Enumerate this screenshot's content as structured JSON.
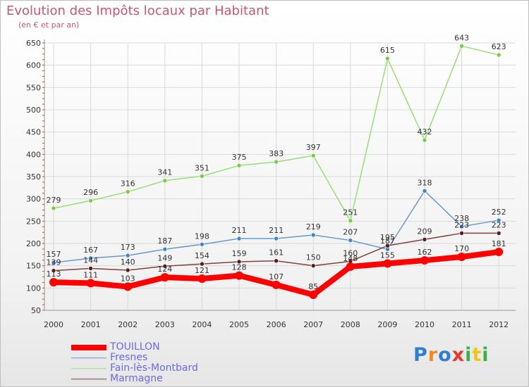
{
  "header": {
    "title": "Evolution des Impôts locaux par Habitant",
    "subtitle": "(en € et par an)"
  },
  "logo_text": "Proxiti",
  "chart_data": {
    "type": "line",
    "title": "Evolution des Impôts locaux par Habitant",
    "subtitle": "(en € et par an)",
    "xlabel": "",
    "ylabel": "",
    "x": [
      "2000",
      "2001",
      "2002",
      "2003",
      "2004",
      "2005",
      "2006",
      "2007",
      "2008",
      "2009",
      "2010",
      "2011",
      "2012"
    ],
    "ylim": [
      50,
      650
    ],
    "yticks": [
      "50",
      "100",
      "150",
      "200",
      "250",
      "300",
      "350",
      "400",
      "450",
      "500",
      "550",
      "600",
      "650"
    ],
    "grid": true,
    "legend_position": "bottom",
    "series": [
      {
        "name": "TOUILLON",
        "color": "#ff0000",
        "marker": "#ff0000",
        "width": 8,
        "r": 6,
        "values": [
          113,
          111,
          103,
          124,
          121,
          128,
          107,
          85,
          148,
          155,
          162,
          170,
          181
        ]
      },
      {
        "name": "Fresnes",
        "color": "#6699cc",
        "marker": "#3a86c8",
        "width": 1.5,
        "r": 3,
        "values": [
          157,
          167,
          173,
          187,
          198,
          211,
          211,
          219,
          207,
          187,
          318,
          238,
          252
        ]
      },
      {
        "name": "Fain-lès-Montbard",
        "color": "#99dd77",
        "marker": "#77cc44",
        "width": 1.5,
        "r": 3,
        "values": [
          279,
          296,
          316,
          341,
          351,
          375,
          383,
          397,
          251,
          615,
          432,
          643,
          623
        ]
      },
      {
        "name": "Marmagne",
        "color": "#804040",
        "marker": "#5a1a1a",
        "width": 1.5,
        "r": 3,
        "values": [
          139,
          144,
          140,
          149,
          154,
          159,
          161,
          150,
          160,
          195,
          209,
          223,
          223
        ]
      }
    ]
  }
}
